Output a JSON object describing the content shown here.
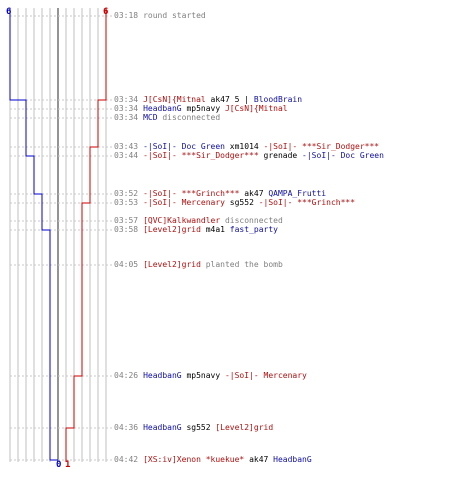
{
  "colors": {
    "blue": "#0000cc",
    "red": "#cc0000",
    "grid": "#c0c0c0",
    "center": "#707070",
    "dash": "#c8c8c8"
  },
  "scores": {
    "blue_start": "6",
    "red_start": "6",
    "blue_end": "0",
    "red_end": "1"
  },
  "events": [
    {
      "time": "03:18",
      "parts": [
        {
          "text": "round started",
          "color": "gray"
        }
      ]
    },
    {
      "time": "03:34",
      "parts": [
        {
          "text": "J[CsN]{Mitnal",
          "color": "red"
        },
        {
          "text": " ak47 5 | ",
          "color": "black"
        },
        {
          "text": "BloodBrain",
          "color": "blue"
        }
      ]
    },
    {
      "time": "03:34",
      "parts": [
        {
          "text": "HeadbanG",
          "color": "blue"
        },
        {
          "text": " mp5navy ",
          "color": "black"
        },
        {
          "text": "J[CsN]{Mitnal",
          "color": "red"
        }
      ]
    },
    {
      "time": "03:34",
      "parts": [
        {
          "text": "MCD",
          "color": "blue"
        },
        {
          "text": " disconnected",
          "color": "gray"
        }
      ]
    },
    {
      "time": "03:43",
      "parts": [
        {
          "text": "-|SoI|- Doc Green",
          "color": "blue"
        },
        {
          "text": " xm1014 ",
          "color": "black"
        },
        {
          "text": "-|SoI|- ***Sir_Dodger***",
          "color": "red"
        }
      ]
    },
    {
      "time": "03:44",
      "parts": [
        {
          "text": "-|SoI|- ***Sir_Dodger***",
          "color": "red"
        },
        {
          "text": " grenade ",
          "color": "black"
        },
        {
          "text": "-|SoI|- Doc Green",
          "color": "blue"
        }
      ]
    },
    {
      "time": "03:52",
      "parts": [
        {
          "text": "-|SoI|- ***Grinch***",
          "color": "red"
        },
        {
          "text": " ak47 ",
          "color": "black"
        },
        {
          "text": "QAMPA_Frutti",
          "color": "blue"
        }
      ]
    },
    {
      "time": "03:53",
      "parts": [
        {
          "text": "-|SoI|- Mercenary",
          "color": "red"
        },
        {
          "text": " sg552 ",
          "color": "black"
        },
        {
          "text": "-|SoI|- ***Grinch***",
          "color": "red"
        }
      ]
    },
    {
      "time": "03:57",
      "parts": [
        {
          "text": "[QVC]Kalkwandler",
          "color": "red"
        },
        {
          "text": " disconnected",
          "color": "gray"
        }
      ]
    },
    {
      "time": "03:58",
      "parts": [
        {
          "text": "[Level2]grid",
          "color": "red"
        },
        {
          "text": " m4a1 ",
          "color": "black"
        },
        {
          "text": "fast_party",
          "color": "blue"
        }
      ]
    },
    {
      "time": "04:05",
      "parts": [
        {
          "text": "[Level2]grid",
          "color": "red"
        },
        {
          "text": " planted the bomb",
          "color": "gray"
        }
      ]
    },
    {
      "time": "04:26",
      "parts": [
        {
          "text": "HeadbanG",
          "color": "blue"
        },
        {
          "text": " mp5navy ",
          "color": "black"
        },
        {
          "text": "-|SoI|- Mercenary",
          "color": "red"
        }
      ]
    },
    {
      "time": "04:36",
      "parts": [
        {
          "text": "HeadbanG",
          "color": "blue"
        },
        {
          "text": " sg552 ",
          "color": "black"
        },
        {
          "text": "[Level2]grid",
          "color": "red"
        }
      ]
    },
    {
      "time": "04:42",
      "parts": [
        {
          "text": "[XS:iv]Xenon *kuekue*",
          "color": "red"
        },
        {
          "text": " ak47 ",
          "color": "black"
        },
        {
          "text": "HeadbanG",
          "color": "blue"
        }
      ]
    }
  ]
}
